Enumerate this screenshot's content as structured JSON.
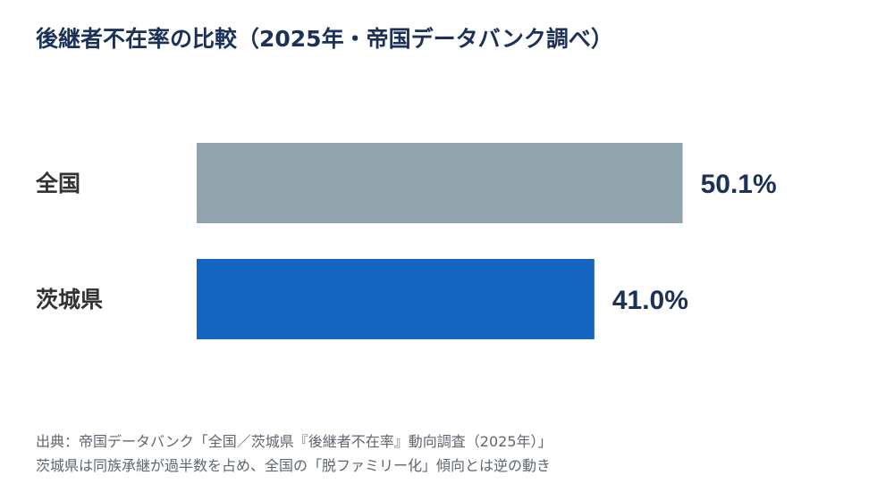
{
  "title": "後継者不在率の比較（2025年・帝国データバンク調べ）",
  "chart_data": {
    "type": "bar",
    "orientation": "horizontal",
    "categories": [
      "全国",
      "茨城県"
    ],
    "values": [
      50.1,
      41.0
    ],
    "value_labels": [
      "50.1%",
      "41.0%"
    ],
    "colors": [
      "#91a4ad",
      "#1565c0"
    ],
    "unit": "%",
    "xlim": [
      0,
      100
    ],
    "grid": false,
    "legend": "none"
  },
  "colors": {
    "title": "#1c3158",
    "category_label": "#333333",
    "value_label": "#1c3158",
    "footer": "#5f6670"
  },
  "footer": {
    "source": "出典：帝国データバンク「全国／茨城県『後継者不在率』動向調査（2025年）」",
    "note": "茨城県は同族承継が過半数を占め、全国の「脱ファミリー化」傾向とは逆の動き"
  }
}
